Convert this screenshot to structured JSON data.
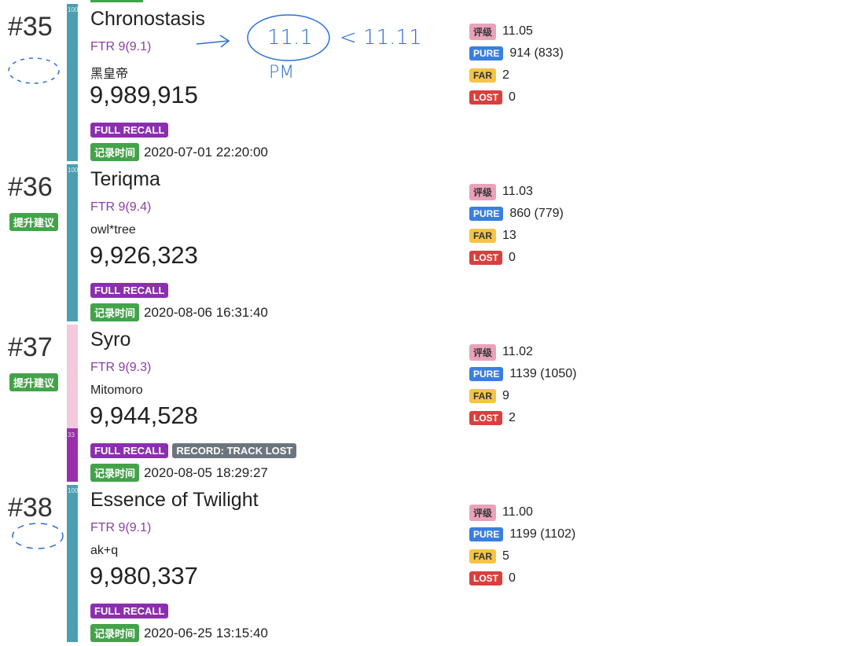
{
  "records": [
    {
      "rank": "#35",
      "bar_label": "100",
      "title": "Chronostasis",
      "difficulty": "FTR 9(9.1)",
      "artist": "黑皇帝",
      "score": "9,989,915",
      "badges": [
        "FULL RECALL"
      ],
      "time_label": "记录时间",
      "time": "2020-07-01 22:20:00",
      "stats": [
        {
          "label": "评级",
          "value": "11.05"
        },
        {
          "label": "PURE",
          "value": "914 (833)"
        },
        {
          "label": "FAR",
          "value": "2"
        },
        {
          "label": "LOST",
          "value": "0"
        }
      ]
    },
    {
      "rank": "#36",
      "suggestion": "提升建议",
      "bar_label": "100",
      "title": "Teriqma",
      "difficulty": "FTR 9(9.4)",
      "artist": "owl*tree",
      "score": "9,926,323",
      "badges": [
        "FULL RECALL"
      ],
      "time_label": "记录时间",
      "time": "2020-08-06 16:31:40",
      "stats": [
        {
          "label": "评级",
          "value": "11.03"
        },
        {
          "label": "PURE",
          "value": "860 (779)"
        },
        {
          "label": "FAR",
          "value": "13"
        },
        {
          "label": "LOST",
          "value": "0"
        }
      ]
    },
    {
      "rank": "#37",
      "suggestion": "提升建议",
      "bar_label": "33",
      "title": "Syro",
      "difficulty": "FTR 9(9.3)",
      "artist": "Mitomoro",
      "score": "9,944,528",
      "badges": [
        "FULL RECALL",
        "RECORD: TRACK LOST"
      ],
      "time_label": "记录时间",
      "time": "2020-08-05 18:29:27",
      "stats": [
        {
          "label": "评级",
          "value": "11.02"
        },
        {
          "label": "PURE",
          "value": "1139 (1050)"
        },
        {
          "label": "FAR",
          "value": "9"
        },
        {
          "label": "LOST",
          "value": "2"
        }
      ]
    },
    {
      "rank": "#38",
      "bar_label": "100",
      "title": "Essence of Twilight",
      "difficulty": "FTR 9(9.1)",
      "artist": "ak+q",
      "score": "9,980,337",
      "badges": [
        "FULL RECALL"
      ],
      "time_label": "记录时间",
      "time": "2020-06-25 13:15:40",
      "stats": [
        {
          "label": "评级",
          "value": "11.00"
        },
        {
          "label": "PURE",
          "value": "1199 (1102)"
        },
        {
          "label": "FAR",
          "value": "5"
        },
        {
          "label": "LOST",
          "value": "0"
        }
      ]
    }
  ],
  "annotations": [
    "11.1",
    "< 11.11",
    "PM"
  ]
}
